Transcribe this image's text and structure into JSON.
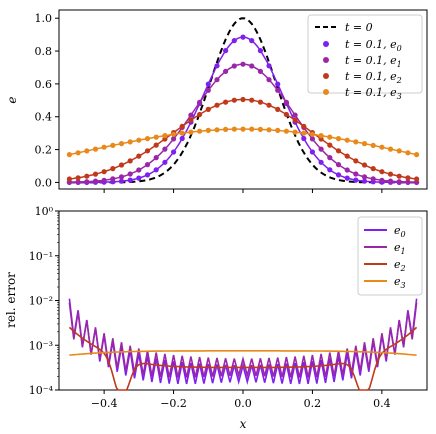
{
  "chart_data": [
    {
      "type": "scatter",
      "ylabel": "e",
      "xlim": [
        -0.53,
        0.53
      ],
      "ylim": [
        -0.04,
        1.05
      ],
      "yticks": [
        "0.0",
        "0.2",
        "0.4",
        "0.6",
        "0.8",
        "1.0"
      ],
      "ytick_values": [
        0,
        0.2,
        0.4,
        0.6,
        0.8,
        1.0
      ],
      "xticks_shown": false,
      "grid": false,
      "legend_position": "top-right",
      "reference_curve": {
        "name": "t = 0",
        "style": "dashed",
        "color": "#000000",
        "formula": "exp(-x^2/0.018)"
      },
      "series": [
        {
          "name": "t = 0.1, e0",
          "color": "#7f1ff0",
          "peak": 0.885,
          "width": 0.16
        },
        {
          "name": "t = 0.1, e1",
          "color": "#9b27a8",
          "peak": 0.72,
          "width": 0.2
        },
        {
          "name": "t = 0.1, e2",
          "color": "#c0391a",
          "peak": 0.505,
          "width": 0.28
        },
        {
          "name": "t = 0.1, e3",
          "color": "#e8891a",
          "peak": 0.325,
          "width": 0.62
        }
      ],
      "x": "41 equally spaced points from -0.5 to 0.5"
    },
    {
      "type": "line",
      "xlabel": "x",
      "ylabel": "rel. error",
      "yscale": "log",
      "xlim": [
        -0.53,
        0.53
      ],
      "ylim": [
        0.0001,
        1
      ],
      "xticks": [
        "−0.4",
        "−0.2",
        "0.0",
        "0.2",
        "0.4"
      ],
      "xtick_values": [
        -0.4,
        -0.2,
        0,
        0.2,
        0.4
      ],
      "yticks": [
        "10⁻⁴",
        "10⁻³",
        "10⁻²",
        "10⁻¹",
        "10⁰"
      ],
      "ytick_values": [
        0.0001,
        0.001,
        0.01,
        0.1,
        1
      ],
      "legend_position": "top-right",
      "series": [
        {
          "name": "e0",
          "color": "#7f1ff0",
          "y_at_center": 0.00025,
          "y_at_edges": 0.0055,
          "oscillating": true
        },
        {
          "name": "e1",
          "color": "#9b27a8",
          "y_at_center": 0.00035,
          "y_at_edges": 0.0045,
          "oscillating": true
        },
        {
          "name": "e2",
          "color": "#c0391a",
          "y_at_center": 0.00032,
          "y_at_edges": 0.0025,
          "oscillating": false
        },
        {
          "name": "e3",
          "color": "#e8891a",
          "y_at_center": 0.00075,
          "y_at_edges": 0.0006,
          "oscillating": false
        }
      ]
    }
  ]
}
